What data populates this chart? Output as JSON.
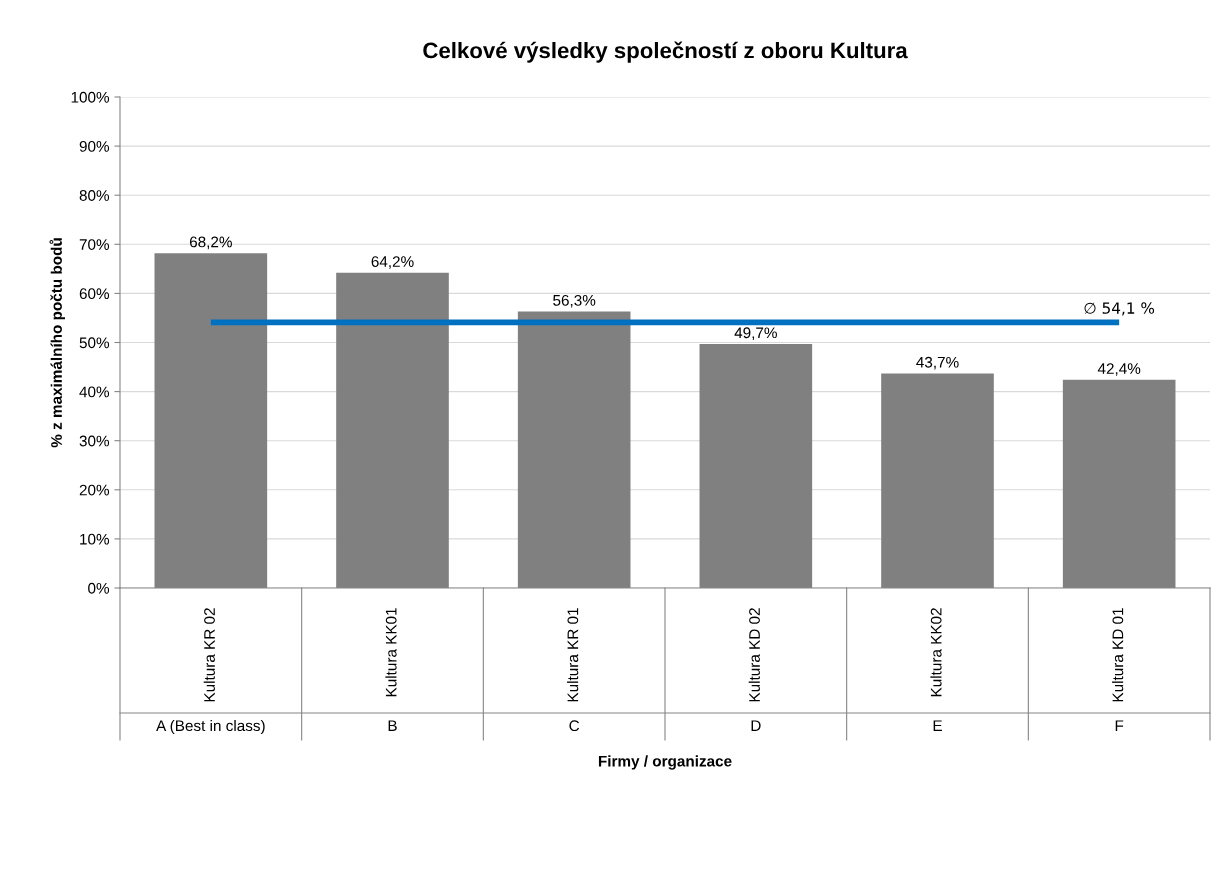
{
  "chart_data": {
    "type": "bar",
    "title": "Celkové výsledky společností z oboru Kultura",
    "xlabel": "Firmy / organizace",
    "ylabel": "% z maximálního počtu bodů",
    "categories": [
      "Kultura KR 02",
      "Kultura KK01",
      "Kultura KR 01",
      "Kultura KD 02",
      "Kultura KK02",
      "Kultura KD 01"
    ],
    "values": [
      68.2,
      64.2,
      56.3,
      49.7,
      43.7,
      42.4
    ],
    "value_labels": [
      "68,2%",
      "64,2%",
      "56,3%",
      "49,7%",
      "43,7%",
      "42,4%"
    ],
    "color": "#808080",
    "ylim": [
      0,
      100
    ],
    "yticks": [
      {
        "value": 0,
        "label": "0%"
      },
      {
        "value": 10,
        "label": "10%"
      },
      {
        "value": 20,
        "label": "20%"
      },
      {
        "value": 30,
        "label": "30%"
      },
      {
        "value": 40,
        "label": "40%"
      },
      {
        "value": 50,
        "label": "50%"
      },
      {
        "value": 60,
        "label": "60%"
      },
      {
        "value": 70,
        "label": "70%"
      },
      {
        "value": 80,
        "label": "80%"
      },
      {
        "value": 90,
        "label": "90%"
      },
      {
        "value": 100,
        "label": "100%"
      }
    ],
    "grid": "y",
    "ref_lines": [
      {
        "axis": "y",
        "value": 54.1,
        "label": "∅ 54,1 %",
        "color": "#0070c0"
      }
    ],
    "annotations": [
      "A (Best in class)",
      "B",
      "C",
      "D",
      "E",
      "F"
    ]
  }
}
